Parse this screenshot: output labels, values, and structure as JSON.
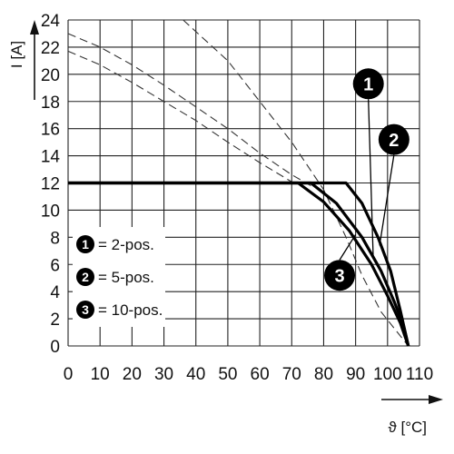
{
  "chart_data": {
    "type": "line",
    "title": "",
    "xlabel": "ϑ [°C]",
    "ylabel": "I [A]",
    "xlim": [
      0,
      110
    ],
    "ylim": [
      0,
      24
    ],
    "x_ticks": [
      "0",
      "10",
      "20",
      "30",
      "40",
      "50",
      "60",
      "70",
      "80",
      "90",
      "100",
      "110"
    ],
    "y_ticks": [
      "0",
      "2",
      "4",
      "6",
      "8",
      "10",
      "12",
      "14",
      "16",
      "18",
      "20",
      "22",
      "24"
    ],
    "grid": true,
    "legend_placement": "lower-left",
    "series": [
      {
        "name": "1 = 2-pos.",
        "badge": "1",
        "solid": [
          [
            0,
            12
          ],
          [
            87,
            12
          ],
          [
            92,
            10.5
          ],
          [
            97,
            8
          ],
          [
            101,
            5.5
          ],
          [
            104,
            2.6
          ],
          [
            106.5,
            0
          ]
        ],
        "dashed": [
          [
            36,
            24
          ],
          [
            50,
            21
          ],
          [
            60,
            18
          ],
          [
            70,
            15
          ],
          [
            80,
            11.5
          ],
          [
            87,
            8
          ],
          [
            92,
            5.2
          ],
          [
            98,
            2.5
          ],
          [
            106.5,
            0
          ]
        ]
      },
      {
        "name": "2 = 5-pos.",
        "badge": "2",
        "solid": [
          [
            0,
            12
          ],
          [
            76,
            12
          ],
          [
            84,
            10.5
          ],
          [
            92,
            8
          ],
          [
            98,
            5.5
          ],
          [
            102,
            3.3
          ],
          [
            105,
            1.5
          ],
          [
            106.5,
            0
          ]
        ],
        "dashed": [
          [
            0,
            23
          ],
          [
            10,
            22
          ],
          [
            20,
            20.7
          ],
          [
            30,
            19.2
          ],
          [
            40,
            17.6
          ],
          [
            50,
            16
          ],
          [
            60,
            14.2
          ],
          [
            70,
            12.6
          ],
          [
            76,
            11.8
          ]
        ]
      },
      {
        "name": "3 = 10-pos.",
        "badge": "3",
        "solid": [
          [
            0,
            12
          ],
          [
            72,
            12
          ],
          [
            80,
            10.6
          ],
          [
            88,
            8.5
          ],
          [
            95,
            6
          ],
          [
            100,
            3.7
          ],
          [
            104,
            1.7
          ],
          [
            106.5,
            0
          ]
        ],
        "dashed": [
          [
            0,
            21.7
          ],
          [
            10,
            20.7
          ],
          [
            20,
            19.4
          ],
          [
            30,
            18
          ],
          [
            40,
            16.6
          ],
          [
            50,
            15
          ],
          [
            60,
            13.5
          ],
          [
            72,
            11.8
          ]
        ]
      }
    ],
    "badge_positions": [
      {
        "badge": "1",
        "x": 94,
        "y": 19.3
      },
      {
        "badge": "2",
        "x": 102,
        "y": 15.2
      },
      {
        "badge": "3",
        "x": 85,
        "y": 5.2
      }
    ]
  },
  "legend": {
    "items": [
      {
        "badge": "1",
        "label": "= 2-pos."
      },
      {
        "badge": "2",
        "label": "= 5-pos."
      },
      {
        "badge": "3",
        "label": "= 10-pos."
      }
    ]
  }
}
